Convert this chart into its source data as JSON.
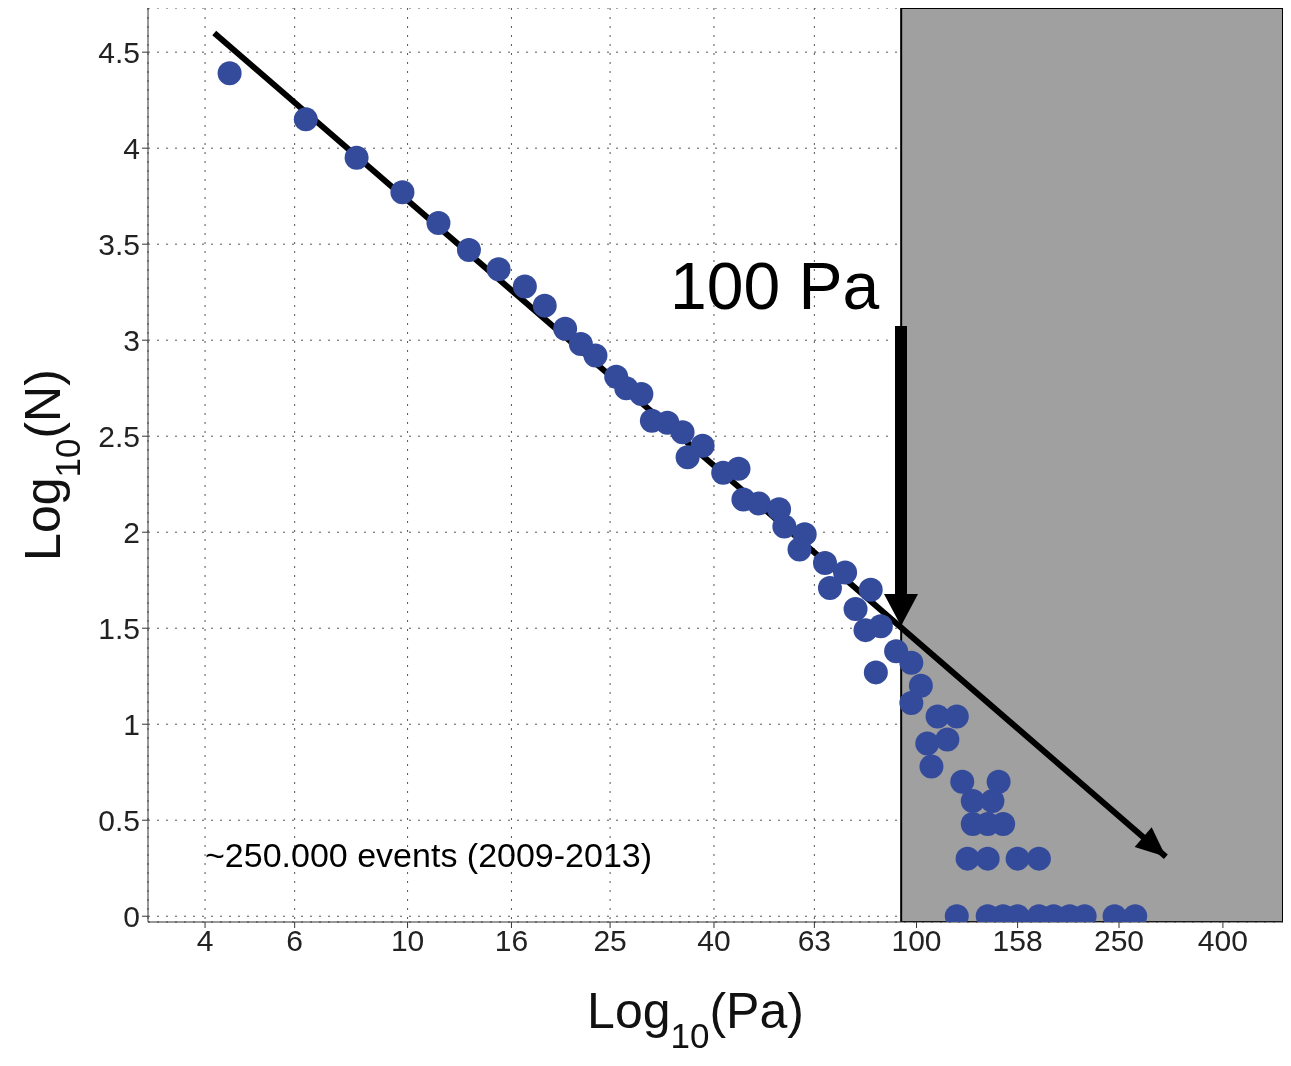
{
  "chart_data": {
    "type": "scatter",
    "xlabel": "Log$_{10}$(Pa)",
    "ylabel": "Log$_{10}$(N)",
    "log": "x",
    "xlim": [
      3.09,
      525
    ],
    "ylim": [
      -0.03,
      4.73
    ],
    "xticks": [
      4,
      6,
      10,
      16,
      25,
      40,
      63,
      100,
      158,
      250,
      400
    ],
    "yticks": [
      0,
      0.5,
      1,
      1.5,
      2,
      2.5,
      3,
      3.5,
      4,
      4.5
    ],
    "grid": true,
    "bands": [
      {
        "axis": "x",
        "from": 93.3,
        "to": 525,
        "color": "#a0a0a0"
      }
    ],
    "annotations": [
      "~250.000 events (2009-2013)",
      "100 Pa"
    ],
    "series": [
      {
        "type": "scatter",
        "color": "#344b9b",
        "marker": "circle",
        "x": [
          4.47,
          6.31,
          7.94,
          9.77,
          11.5,
          13.2,
          15.1,
          17.0,
          18.6,
          20.4,
          21.9,
          23.4,
          25.7,
          26.9,
          28.8,
          30.2,
          32.4,
          34.7,
          35.5,
          38.0,
          41.7,
          44.7,
          45.7,
          49.0,
          53.7,
          55.0,
          58.9,
          60.3,
          66.1,
          67.6,
          72.4,
          75.9,
          79.4,
          81.3,
          83.2,
          85.1,
          91.2,
          97.7,
          97.7,
          102,
          105,
          107,
          110,
          115,
          120,
          120,
          123,
          126,
          129,
          129,
          138,
          138,
          138,
          141,
          145,
          148,
          148,
          158,
          158,
          174,
          174,
          186,
          200,
          214,
          245,
          269
        ],
        "values": [
          4.39,
          4.15,
          3.95,
          3.77,
          3.61,
          3.47,
          3.37,
          3.28,
          3.18,
          3.06,
          2.98,
          2.92,
          2.81,
          2.75,
          2.72,
          2.58,
          2.57,
          2.52,
          2.39,
          2.45,
          2.31,
          2.33,
          2.17,
          2.15,
          2.12,
          2.03,
          1.91,
          1.99,
          1.84,
          1.71,
          1.79,
          1.6,
          1.49,
          1.7,
          1.27,
          1.51,
          1.38,
          1.32,
          1.11,
          1.2,
          0.9,
          0.78,
          1.04,
          0.92,
          1.04,
          0.0,
          0.7,
          0.3,
          0.48,
          0.6,
          0.48,
          0.3,
          0.0,
          0.6,
          0.7,
          0.48,
          0.0,
          0.3,
          0.0,
          0.3,
          0.0,
          0.0,
          0.0,
          0.0,
          0.0,
          0.0
        ]
      },
      {
        "type": "line",
        "color": "#000000",
        "marker": "none",
        "line_style": "solid",
        "x": [
          4.17,
          309
        ],
        "values": [
          4.6,
          0.31
        ]
      }
    ]
  }
}
